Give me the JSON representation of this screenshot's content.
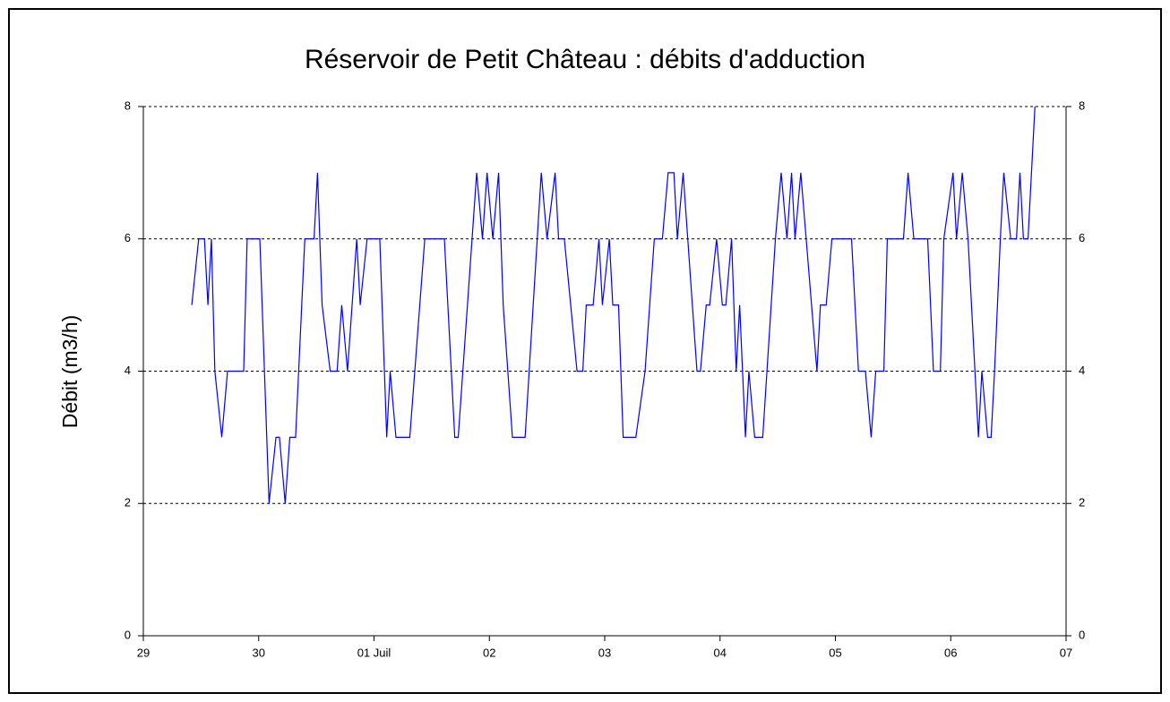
{
  "chart_data": {
    "type": "line",
    "title": "Réservoir de Petit Château : débits d'adduction",
    "y_label": "Débit  (m3/h)",
    "xlim": [
      0,
      8
    ],
    "xticks": [
      {
        "value": 0,
        "label": "29"
      },
      {
        "value": 1,
        "label": "30"
      },
      {
        "value": 2,
        "label": "01 Juil"
      },
      {
        "value": 3,
        "label": "02"
      },
      {
        "value": 4,
        "label": "03"
      },
      {
        "value": 5,
        "label": "04"
      },
      {
        "value": 6,
        "label": "05"
      },
      {
        "value": 7,
        "label": "06"
      },
      {
        "value": 8,
        "label": "07"
      }
    ],
    "ylim": [
      0,
      8
    ],
    "yticks": [
      0,
      2,
      4,
      6,
      8
    ],
    "mirror_y_axis": true,
    "grid": true,
    "x": [
      0.42,
      0.48,
      0.53,
      0.56,
      0.59,
      0.62,
      0.68,
      0.73,
      0.87,
      0.9,
      1.01,
      1.09,
      1.15,
      1.18,
      1.23,
      1.27,
      1.32,
      1.4,
      1.48,
      1.51,
      1.55,
      1.62,
      1.68,
      1.72,
      1.77,
      1.85,
      1.88,
      1.94,
      2.05,
      2.11,
      2.14,
      2.19,
      2.31,
      2.44,
      2.61,
      2.7,
      2.73,
      2.89,
      2.94,
      2.98,
      3.03,
      3.08,
      3.12,
      3.2,
      3.31,
      3.45,
      3.5,
      3.57,
      3.6,
      3.65,
      3.76,
      3.81,
      3.84,
      3.9,
      3.95,
      3.98,
      4.04,
      4.07,
      4.12,
      4.16,
      4.27,
      4.35,
      4.43,
      4.5,
      4.55,
      4.6,
      4.63,
      4.68,
      4.8,
      4.83,
      4.88,
      4.91,
      4.97,
      5.02,
      5.05,
      5.1,
      5.14,
      5.17,
      5.22,
      5.25,
      5.3,
      5.37,
      5.48,
      5.53,
      5.58,
      5.62,
      5.65,
      5.7,
      5.84,
      5.87,
      5.92,
      5.97,
      6.14,
      6.2,
      6.26,
      6.31,
      6.35,
      6.42,
      6.45,
      6.59,
      6.63,
      6.68,
      6.8,
      6.85,
      6.91,
      6.94,
      7.02,
      7.05,
      7.1,
      7.15,
      7.24,
      7.27,
      7.32,
      7.35,
      7.38,
      7.43,
      7.46,
      7.52,
      7.57,
      7.6,
      7.63,
      7.67,
      7.73
    ],
    "series": [
      {
        "color": "#0000ff",
        "values": [
          5,
          6,
          6,
          5,
          6,
          4,
          3,
          4,
          4,
          6,
          6,
          2,
          3,
          3,
          2,
          3,
          3,
          6,
          6,
          7,
          5,
          4,
          4,
          5,
          4,
          6,
          5,
          6,
          6,
          3,
          4,
          3,
          3,
          6,
          6,
          3,
          3,
          7,
          6,
          7,
          6,
          7,
          5,
          3,
          3,
          7,
          6,
          7,
          6,
          6,
          4,
          4,
          5,
          5,
          6,
          5,
          6,
          5,
          5,
          3,
          3,
          4,
          6,
          6,
          7,
          7,
          6,
          7,
          4,
          4,
          5,
          5,
          6,
          5,
          5,
          6,
          4,
          5,
          3,
          4,
          3,
          3,
          6,
          7,
          6,
          7,
          6,
          7,
          4,
          5,
          5,
          6,
          6,
          4,
          4,
          3,
          4,
          4,
          6,
          6,
          7,
          6,
          6,
          4,
          4,
          6,
          7,
          6,
          7,
          6,
          3,
          4,
          3,
          3,
          4,
          6,
          7,
          6,
          6,
          7,
          6,
          6,
          8
        ]
      }
    ]
  }
}
